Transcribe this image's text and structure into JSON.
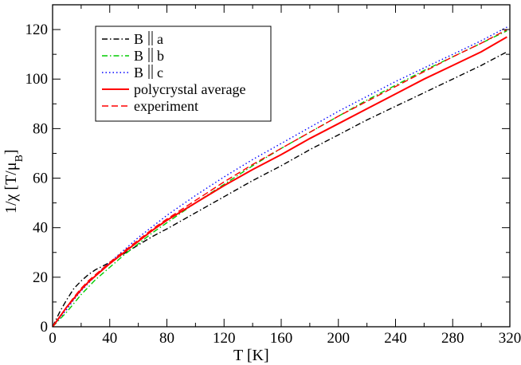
{
  "chart_data": {
    "type": "line",
    "xlabel": "T  [K]",
    "ylabel": "1/χ   [T/μ",
    "ylabel_sub": "B",
    "ylabel_close": "]",
    "xlim": [
      0,
      320
    ],
    "ylim": [
      0,
      130
    ],
    "xticks": [
      0,
      40,
      80,
      120,
      160,
      200,
      240,
      280,
      320
    ],
    "yticks": [
      0,
      20,
      40,
      60,
      80,
      100,
      120
    ],
    "grid": false,
    "legend_position": "top-left",
    "series": [
      {
        "name": "B",
        "name_suffix": "a",
        "color": "#000000",
        "style": "dashdot",
        "x": [
          0,
          5,
          10,
          15,
          20,
          25,
          30,
          35,
          40,
          50,
          60,
          70,
          80,
          100,
          120,
          140,
          160,
          180,
          200,
          220,
          240,
          260,
          280,
          300,
          318
        ],
        "y": [
          0,
          6,
          11,
          15.5,
          18.5,
          21,
          23,
          24.5,
          26,
          29.5,
          33,
          36.5,
          39.5,
          46,
          52.5,
          59,
          65,
          71.5,
          77.5,
          83.5,
          89,
          94.5,
          100,
          105.5,
          111
        ]
      },
      {
        "name": "B",
        "name_suffix": "b",
        "color": "#00cc00",
        "style": "dashdot",
        "x": [
          0,
          5,
          10,
          15,
          20,
          25,
          30,
          35,
          40,
          50,
          60,
          70,
          80,
          100,
          120,
          140,
          160,
          180,
          200,
          220,
          240,
          260,
          280,
          300,
          318
        ],
        "y": [
          0,
          3,
          6,
          9.5,
          13,
          16,
          19,
          21.5,
          24,
          29,
          33.5,
          38,
          42,
          50,
          57.5,
          65,
          72,
          78.5,
          85,
          91.5,
          97.5,
          103.5,
          109,
          114.5,
          119.5
        ]
      },
      {
        "name": "B",
        "name_suffix": "c",
        "color": "#0000ff",
        "style": "dotted",
        "x": [
          0,
          5,
          10,
          15,
          20,
          25,
          30,
          35,
          40,
          50,
          60,
          70,
          80,
          100,
          120,
          140,
          160,
          180,
          200,
          220,
          240,
          260,
          280,
          300,
          318
        ],
        "y": [
          0,
          3.5,
          7,
          11,
          14.5,
          17.5,
          20.5,
          23.5,
          26,
          31,
          36,
          40.5,
          45,
          53,
          60.5,
          67.5,
          74,
          80.5,
          87,
          93,
          99,
          104.5,
          110,
          115.5,
          121
        ]
      },
      {
        "name": "polycrystal average",
        "color": "#ff0000",
        "style": "solid",
        "x": [
          0,
          5,
          10,
          15,
          20,
          25,
          30,
          35,
          40,
          50,
          60,
          70,
          80,
          100,
          120,
          140,
          160,
          180,
          200,
          220,
          240,
          260,
          280,
          300,
          318
        ],
        "y": [
          0,
          4,
          8,
          11.5,
          15,
          18,
          20.5,
          23,
          25.5,
          30,
          34.5,
          39,
          43,
          50,
          57,
          63.5,
          69.5,
          76,
          82,
          88,
          94,
          100,
          105.5,
          111,
          117
        ]
      },
      {
        "name": "experiment",
        "color": "#ff0000",
        "style": "dashed",
        "x": [
          0,
          5,
          10,
          15,
          20,
          25,
          30,
          35,
          40,
          50,
          60,
          70,
          80,
          100,
          120,
          140,
          160,
          180,
          200,
          220,
          240,
          260,
          280,
          300,
          318
        ],
        "y": [
          0,
          4,
          8,
          12,
          15.5,
          18.5,
          21,
          23.5,
          26,
          30.5,
          35,
          39.5,
          43.5,
          51,
          58.5,
          65.5,
          72,
          78.5,
          85,
          91,
          97,
          103,
          109,
          114.5,
          120
        ]
      }
    ]
  }
}
